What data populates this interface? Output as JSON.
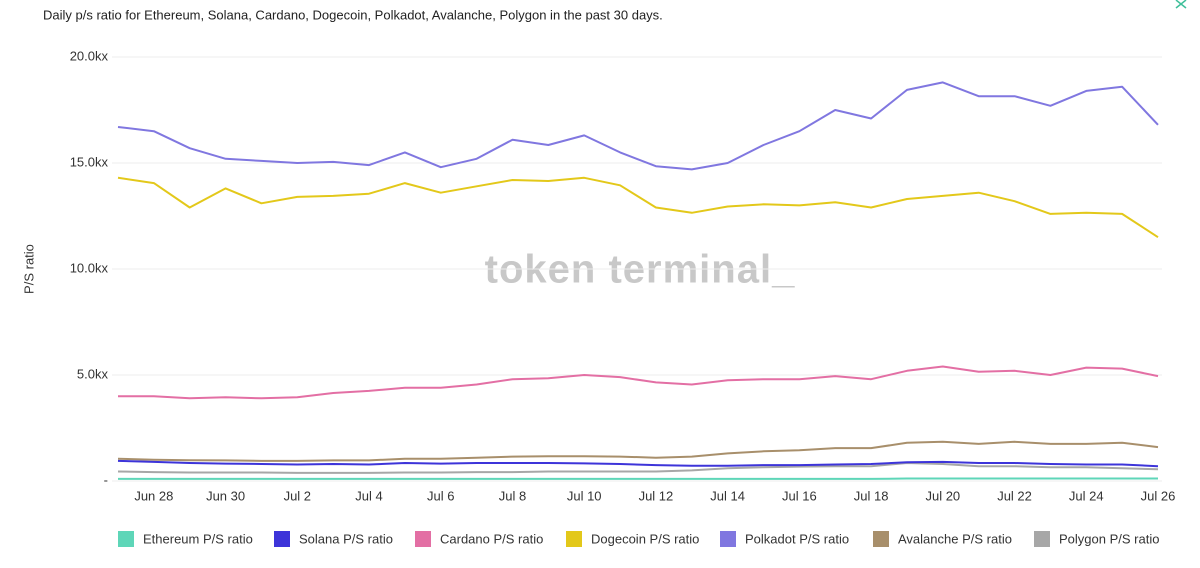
{
  "chart_data": {
    "type": "line",
    "title": "Daily p/s ratio for Ethereum, Solana, Cardano, Dogecoin, Polkadot, Avalanche, Polygon in the past 30 days.",
    "watermark": "token terminal_",
    "ylabel": "P/S ratio",
    "categories": [
      null,
      "Jun 28",
      null,
      "Jun 30",
      null,
      "Jul 2",
      null,
      "Jul 4",
      null,
      "Jul 6",
      null,
      "Jul 8",
      null,
      "Jul 10",
      null,
      "Jul 12",
      null,
      "Jul 14",
      null,
      "Jul 16",
      null,
      "Jul 18",
      null,
      "Jul 20",
      null,
      "Jul 22",
      null,
      "Jul 24",
      null,
      "Jul 26"
    ],
    "series": [
      {
        "name": "Ethereum P/S ratio",
        "color": "#5ed6b8",
        "values": [
          0.1,
          0.1,
          0.1,
          0.1,
          0.1,
          0.1,
          0.1,
          0.1,
          0.1,
          0.1,
          0.1,
          0.1,
          0.1,
          0.1,
          0.1,
          0.1,
          0.1,
          0.1,
          0.1,
          0.1,
          0.1,
          0.1,
          0.12,
          0.12,
          0.12,
          0.12,
          0.12,
          0.12,
          0.12,
          0.12
        ]
      },
      {
        "name": "Solana P/S ratio",
        "color": "#3d34d9",
        "values": [
          0.95,
          0.9,
          0.85,
          0.82,
          0.8,
          0.78,
          0.8,
          0.78,
          0.85,
          0.82,
          0.85,
          0.85,
          0.85,
          0.83,
          0.8,
          0.75,
          0.72,
          0.72,
          0.75,
          0.75,
          0.78,
          0.8,
          0.88,
          0.9,
          0.85,
          0.85,
          0.8,
          0.78,
          0.78,
          0.7
        ]
      },
      {
        "name": "Cardano P/S ratio",
        "color": "#e36fa4",
        "values": [
          4.0,
          4.0,
          3.9,
          3.95,
          3.9,
          3.95,
          4.15,
          4.25,
          4.4,
          4.4,
          4.55,
          4.8,
          4.85,
          5.0,
          4.9,
          4.65,
          4.55,
          4.75,
          4.8,
          4.8,
          4.95,
          4.8,
          5.2,
          5.4,
          5.15,
          5.2,
          5.0,
          5.35,
          5.3,
          4.95
        ]
      },
      {
        "name": "Dogecoin P/S ratio",
        "color": "#e3c81a",
        "values": [
          14.3,
          14.05,
          12.9,
          13.8,
          13.1,
          13.4,
          13.45,
          13.55,
          14.05,
          13.6,
          13.9,
          14.2,
          14.15,
          14.3,
          13.95,
          12.9,
          12.65,
          12.95,
          13.05,
          13.0,
          13.15,
          12.9,
          13.3,
          13.45,
          13.6,
          13.2,
          12.6,
          12.65,
          12.6,
          11.5
        ]
      },
      {
        "name": "Polkadot P/S ratio",
        "color": "#8077e0",
        "values": [
          16.7,
          16.5,
          15.7,
          15.2,
          15.1,
          15.0,
          15.05,
          14.9,
          15.5,
          14.8,
          15.2,
          16.1,
          15.85,
          16.3,
          15.5,
          14.85,
          14.7,
          15.0,
          15.85,
          16.5,
          17.5,
          17.1,
          18.45,
          18.8,
          18.15,
          18.15,
          17.7,
          18.4,
          18.6,
          16.8
        ]
      },
      {
        "name": "Avalanche P/S ratio",
        "color": "#a88f6b",
        "values": [
          1.05,
          1.0,
          0.98,
          0.97,
          0.95,
          0.95,
          0.97,
          0.97,
          1.05,
          1.05,
          1.1,
          1.15,
          1.17,
          1.17,
          1.15,
          1.1,
          1.15,
          1.3,
          1.4,
          1.45,
          1.55,
          1.55,
          1.8,
          1.85,
          1.75,
          1.85,
          1.75,
          1.75,
          1.8,
          1.6
        ]
      },
      {
        "name": "Polygon P/S ratio",
        "color": "#a7a7a7",
        "values": [
          0.45,
          0.42,
          0.4,
          0.4,
          0.4,
          0.38,
          0.38,
          0.38,
          0.4,
          0.4,
          0.42,
          0.42,
          0.45,
          0.45,
          0.45,
          0.45,
          0.5,
          0.6,
          0.65,
          0.68,
          0.7,
          0.7,
          0.85,
          0.8,
          0.7,
          0.7,
          0.65,
          0.65,
          0.6,
          0.55
        ]
      }
    ],
    "ylim": [
      0,
      20
    ],
    "yticks": [
      {
        "value": 0,
        "label": "-"
      },
      {
        "value": 5,
        "label": "5.0kx"
      },
      {
        "value": 10,
        "label": "10.0kx"
      },
      {
        "value": 15,
        "label": "15.0kx"
      },
      {
        "value": 20,
        "label": "20.0kx"
      }
    ],
    "grid": true,
    "legend": "bottom"
  }
}
